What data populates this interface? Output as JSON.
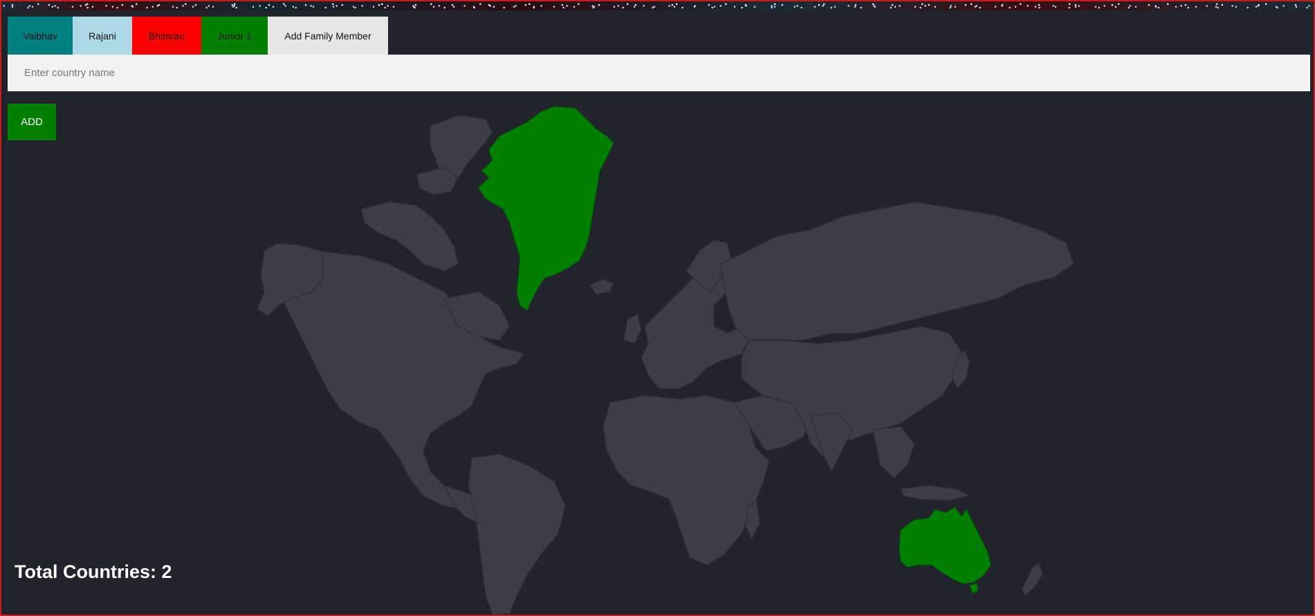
{
  "tabs": [
    {
      "label": "Vaibhav",
      "color": "#008080"
    },
    {
      "label": "Rajani",
      "color": "#add8e6"
    },
    {
      "label": "Bhimrao",
      "color": "#ff0000"
    },
    {
      "label": "Junior 1",
      "color": "#008000"
    }
  ],
  "add_family_member_label": "Add Family Member",
  "search": {
    "placeholder": "Enter country name",
    "value": ""
  },
  "add_button_label": "ADD",
  "visited_countries_color": "#008000",
  "total_label": "Total Countries: 2",
  "colors": {
    "background": "#21242b",
    "land": "#3b3e47",
    "input_bg": "#f2f2f2",
    "frame_border": "#cc1b1b"
  }
}
